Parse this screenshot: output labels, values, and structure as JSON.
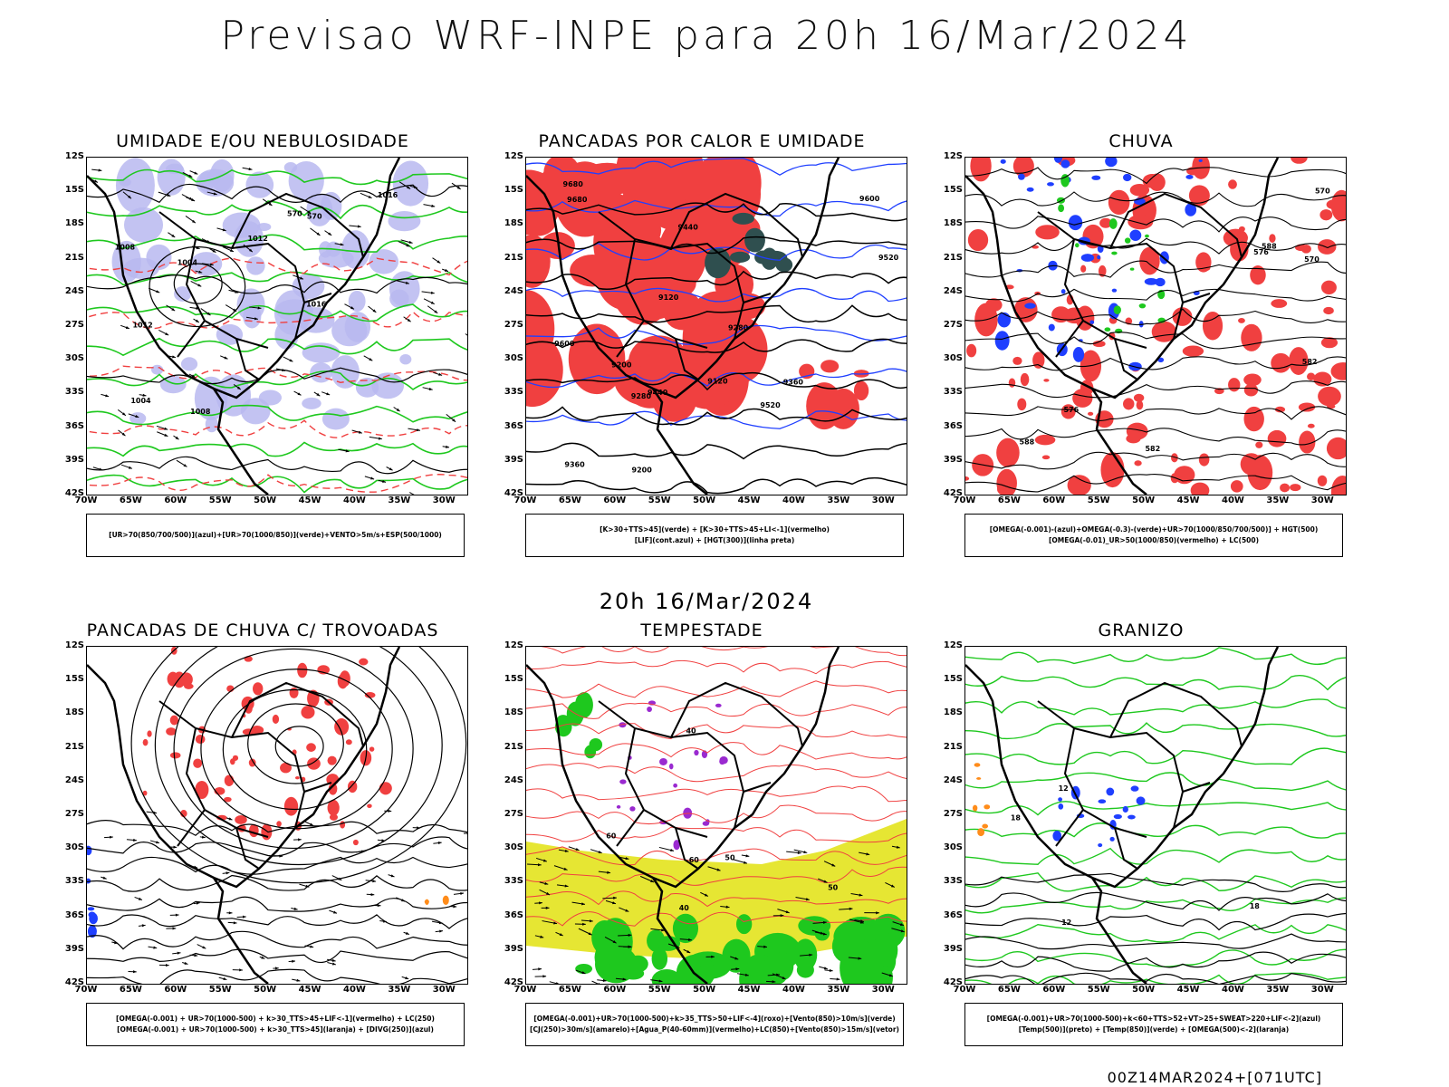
{
  "title": "Previsao WRF-INPE  para 20h 16/Mar/2024",
  "subtitle": "20h 16/Mar/2024",
  "footer": "00Z14MAR2024+[071UTC]",
  "lat_ticks": [
    "12S",
    "15S",
    "18S",
    "21S",
    "24S",
    "27S",
    "30S",
    "33S",
    "36S",
    "39S",
    "42S"
  ],
  "lon_ticks": [
    "70W",
    "65W",
    "60W",
    "55W",
    "50W",
    "45W",
    "40W",
    "35W",
    "30W"
  ],
  "colors": {
    "red": "#f04040",
    "green": "#1ec81e",
    "blue": "#1f3fff",
    "lavender": "#b8b8f0",
    "yellow": "#e6e633",
    "darkteal": "#2f4f4f",
    "purple": "#9a2ad0",
    "orange": "#ff8c1a"
  },
  "panels": [
    {
      "title": "UMIDADE E/OU NEBULOSIDADE",
      "legend": [
        "[UR>70(850/700/500)](azul)+[UR>70(1000/850)](verde)+VENTO>5m/s+ESP(500/1000)"
      ],
      "contour_labels": [
        "1008",
        "1012",
        "1004",
        "1016",
        "570"
      ]
    },
    {
      "title": "PANCADAS POR CALOR E UMIDADE",
      "legend": [
        "[K>30+TTS>45](verde) + [K>30+TTS>45+LI<-1](vermelho)",
        "[LIF](cont.azul) + [HGT(300)](linha preta)"
      ],
      "contour_labels": [
        "9680",
        "9600",
        "9520",
        "9440",
        "9360",
        "9280",
        "9200",
        "9120"
      ]
    },
    {
      "title": "CHUVA",
      "legend": [
        "[OMEGA(-0.001)-(azul)+OMEGA(-0.3)-(verde)+UR>70(1000/850/700/500)] + HGT(500)",
        "[OMEGA(-0.01)_UR>50(1000/850)(vermelho) + LC(500)"
      ],
      "contour_labels": [
        "588",
        "582",
        "576",
        "570"
      ]
    },
    {
      "title": "PANCADAS DE CHUVA C/ TROVOADAS",
      "legend": [
        "[OMEGA(-0.001) + UR>70(1000-500) + k>30_TTS>45+LIF<-1](vermelho) + LC(250)",
        "[OMEGA(-0.001) + UR>70(1000-500) + k>30_TTS>45](laranja) + [DIVG(250)](azul)"
      ],
      "contour_labels": []
    },
    {
      "title": "TEMPESTADE",
      "legend": [
        "[OMEGA(-0.001)+UR>70(1000-500)+k>35_TTS>50+LIF<-4](roxo)+[Vento(850)>10m/s](verde)",
        "[CJ(250)>30m/s](amarelo)+[Agua_P(40-60mm)](vermelho)+LC(850)+[Vento(850)>15m/s](vetor)"
      ],
      "contour_labels": [
        "60",
        "50",
        "40"
      ]
    },
    {
      "title": "GRANIZO",
      "legend": [
        "[OMEGA(-0.001)+UR>70(1000-500)+k<60+TTS>52+VT>25+SWEAT>220+LIF<-2](azul)",
        "[Temp(500)](preto) + [Temp(850)](verde) + [OMEGA(500)<-2](laranja)"
      ],
      "contour_labels": [
        "12",
        "18"
      ]
    }
  ]
}
